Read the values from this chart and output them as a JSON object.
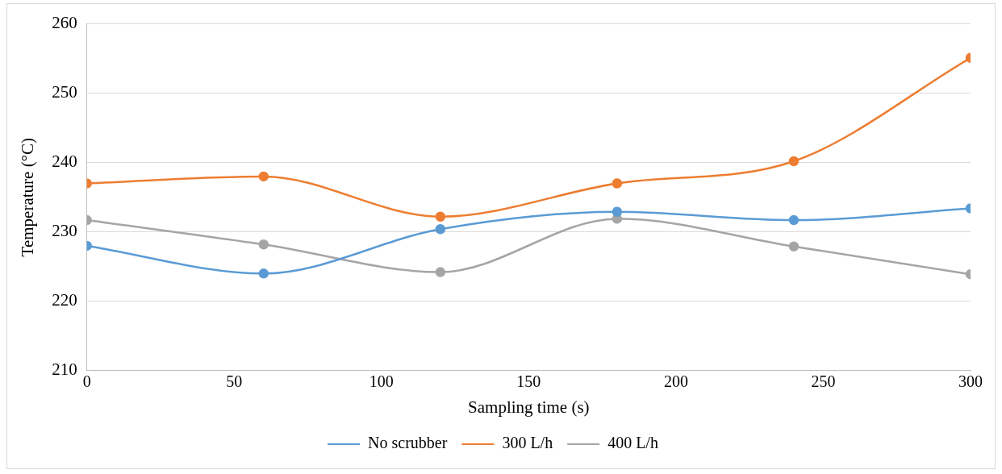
{
  "chart_data": {
    "type": "line",
    "xlabel": "Sampling time (s)",
    "ylabel": "Temperature (°C)",
    "x": [
      0,
      60,
      120,
      180,
      240,
      300
    ],
    "xlim": [
      0,
      300
    ],
    "xticks": [
      0,
      50,
      100,
      150,
      200,
      250,
      300
    ],
    "ylim": [
      210,
      260
    ],
    "yticks": [
      210,
      220,
      230,
      240,
      250,
      260
    ],
    "grid": "y",
    "legend": "bottom",
    "marker": "circle",
    "line_style": "solid",
    "series": [
      {
        "name": "No scrubber",
        "color": "#5b9bd5",
        "values": [
          228,
          224,
          230.4,
          232.9,
          231.7,
          233.4
        ]
      },
      {
        "name": "300 L/h",
        "color": "#ed7d31",
        "values": [
          237,
          238,
          232.2,
          237,
          240.2,
          255.1
        ]
      },
      {
        "name": "400 L/h",
        "color": "#a5a5a5",
        "values": [
          231.7,
          228.2,
          224.2,
          231.9,
          227.9,
          223.9
        ]
      }
    ]
  }
}
